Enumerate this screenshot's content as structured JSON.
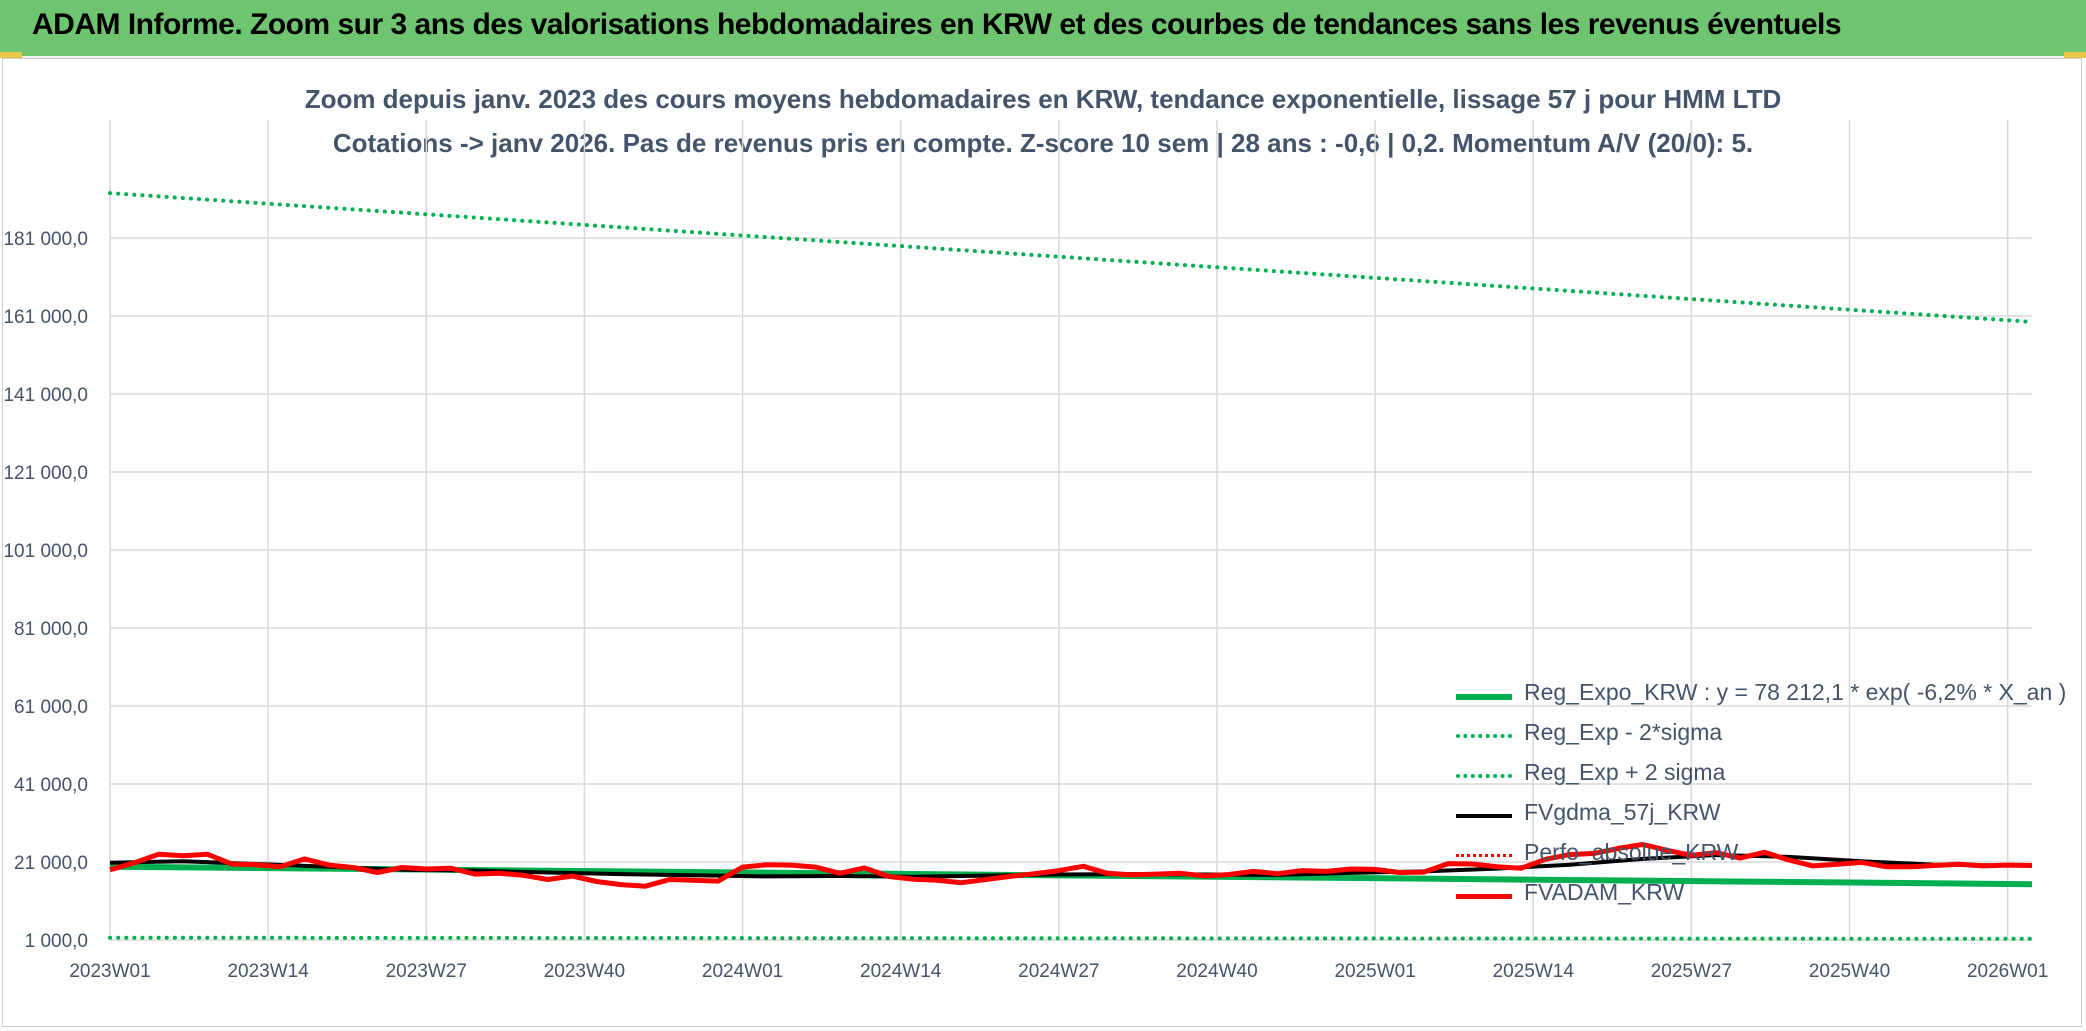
{
  "header": {
    "title": "ADAM Informe. Zoom sur 3 ans des valorisations hebdomadaires en KRW et des courbes de tendances sans les revenus éventuels"
  },
  "chart_data": {
    "type": "line",
    "title": "Zoom depuis janv. 2023 des cours moyens hebdomadaires en KRW, tendance exponentielle, lissage 57 j pour HMM LTD",
    "subtitle": "Cotations -> janv 2026. Pas de revenus pris en compte. Z-score 10 sem | 28 ans : -0,6 | 0,2. Momentum A/V (20/0): 5.",
    "xlabel": "",
    "ylabel": "",
    "ylim": [
      1000,
      201000
    ],
    "x_tick_labels": [
      "2023W01",
      "2023W14",
      "2023W27",
      "2023W40",
      "2024W01",
      "2024W14",
      "2024W27",
      "2024W40",
      "2025W01",
      "2025W14",
      "2025W27",
      "2025W40",
      "2026W01"
    ],
    "y_tick_labels": [
      "1 000,0",
      "21 000,0",
      "41 000,0",
      "61 000,0",
      "81 000,0",
      "101 000,0",
      "121 000,0",
      "141 000,0",
      "161 000,0",
      "181 000,0"
    ],
    "y_tick_values": [
      1000,
      21000,
      41000,
      61000,
      81000,
      101000,
      121000,
      141000,
      161000,
      181000
    ],
    "grid": true,
    "legend_position": "bottom-right",
    "weeks": 159,
    "series": [
      {
        "name": "Reg_Expo_KRW : y = 78 212,1 * exp( -6,2% *  X_an )",
        "color": "#00b050",
        "style": "solid",
        "width": 6,
        "x": [
          0,
          158
        ],
        "values": [
          19800,
          15300
        ]
      },
      {
        "name": "Reg_Exp - 2*sigma",
        "color": "#00b050",
        "style": "dotted",
        "width": 4,
        "x": [
          0,
          158
        ],
        "values": [
          1600,
          1300
        ]
      },
      {
        "name": "Reg_Exp + 2 sigma",
        "color": "#00b050",
        "style": "dotted",
        "width": 4,
        "x": [
          0,
          158
        ],
        "values": [
          192500,
          159500
        ]
      },
      {
        "name": "FVgdma_57j_KRW",
        "color": "#000000",
        "style": "solid",
        "width": 4,
        "x": [
          0,
          6,
          12,
          18,
          24,
          30,
          36,
          42,
          48,
          54,
          60,
          66,
          72,
          78,
          84,
          90,
          96,
          102,
          108,
          114,
          120,
          126,
          132,
          138,
          144,
          150,
          156,
          158
        ],
        "values": [
          20800,
          21200,
          20500,
          19800,
          19000,
          18800,
          18300,
          17900,
          17600,
          17300,
          17400,
          17200,
          17500,
          17800,
          17900,
          17800,
          17700,
          18200,
          18600,
          19300,
          20300,
          21800,
          22800,
          22300,
          21200,
          20300,
          20100,
          20100
        ]
      },
      {
        "name": "Perfo_absolue_KRW",
        "color": "#ff0000",
        "style": "dotted",
        "width": 3,
        "x": [],
        "values": []
      },
      {
        "name": "FVADAM_KRW",
        "color": "#ff0000",
        "style": "solid",
        "width": 5,
        "x": [
          0,
          2,
          4,
          6,
          8,
          10,
          12,
          14,
          16,
          18,
          20,
          22,
          24,
          26,
          28,
          30,
          32,
          34,
          36,
          38,
          40,
          42,
          44,
          46,
          48,
          50,
          52,
          54,
          56,
          58,
          60,
          62,
          64,
          66,
          68,
          70,
          72,
          74,
          76,
          78,
          80,
          82,
          84,
          86,
          88,
          90,
          92,
          94,
          96,
          98,
          100,
          102,
          104,
          106,
          108,
          110,
          112,
          114,
          116,
          118,
          120,
          122,
          124,
          126,
          128,
          130,
          132,
          134,
          136,
          138,
          140,
          142,
          144,
          146,
          148,
          150,
          152,
          154,
          156,
          158
        ],
        "values": [
          19000,
          20800,
          23000,
          22600,
          23000,
          20500,
          20300,
          19800,
          21800,
          20200,
          19600,
          18300,
          19600,
          19200,
          19400,
          17900,
          18100,
          17600,
          16500,
          17400,
          16000,
          15200,
          14800,
          16500,
          16300,
          16100,
          19700,
          20300,
          20200,
          19700,
          18100,
          19500,
          17300,
          16600,
          16300,
          15700,
          16500,
          17300,
          18000,
          18800,
          19900,
          18100,
          17700,
          17900,
          18100,
          17400,
          17800,
          18600,
          18000,
          18800,
          18600,
          19200,
          19100,
          18300,
          18400,
          20600,
          20500,
          19800,
          19400,
          21700,
          22900,
          23200,
          24500,
          25500,
          24000,
          22700,
          23400,
          22000,
          23500,
          21500,
          20000,
          20400,
          20900,
          19800,
          19800,
          20100,
          20400,
          20000,
          20200,
          20100
        ]
      }
    ]
  }
}
